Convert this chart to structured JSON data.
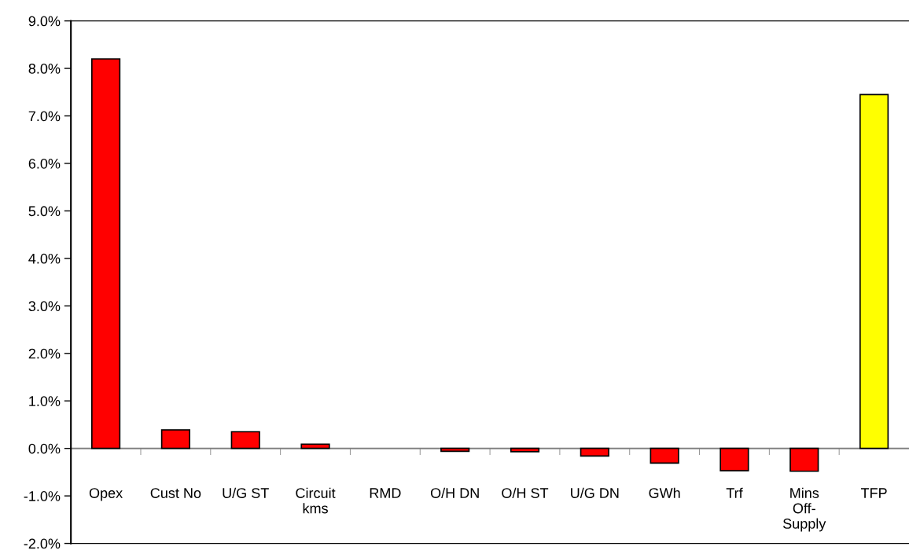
{
  "chart_data": {
    "type": "bar",
    "categories": [
      "Opex",
      "Cust No",
      "U/G ST",
      "Circuit\nkms",
      "RMD",
      "O/H DN",
      "O/H ST",
      "U/G DN",
      "GWh",
      "Trf",
      "Mins\nOff-\nSupply",
      "TFP"
    ],
    "values": [
      8.2,
      0.39,
      0.35,
      0.09,
      null,
      -0.06,
      -0.07,
      -0.16,
      -0.31,
      -0.47,
      -0.48,
      7.45
    ],
    "colors": [
      "#ff0000",
      "#ff0000",
      "#ff0000",
      "#ff0000",
      "#ff0000",
      "#ff0000",
      "#ff0000",
      "#ff0000",
      "#ff0000",
      "#ff0000",
      "#ff0000",
      "#ffff00"
    ],
    "ylim": [
      -2,
      9
    ],
    "yticks": [
      {
        "value": -2,
        "label": "-2.0%"
      },
      {
        "value": -1,
        "label": "-1.0%"
      },
      {
        "value": 0,
        "label": "0.0%"
      },
      {
        "value": 1,
        "label": "1.0%"
      },
      {
        "value": 2,
        "label": "2.0%"
      },
      {
        "value": 3,
        "label": "3.0%"
      },
      {
        "value": 4,
        "label": "4.0%"
      },
      {
        "value": 5,
        "label": "5.0%"
      },
      {
        "value": 6,
        "label": "6.0%"
      },
      {
        "value": 7,
        "label": "7.0%"
      },
      {
        "value": 8,
        "label": "8.0%"
      },
      {
        "value": 9,
        "label": "9.0%"
      }
    ],
    "legend": false
  }
}
